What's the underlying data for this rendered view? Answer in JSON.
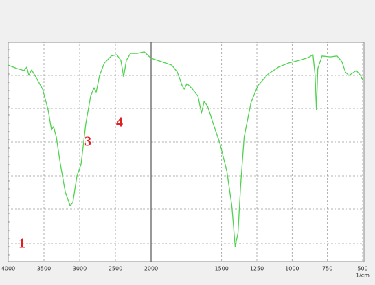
{
  "chart_data": {
    "type": "line",
    "x_label": "1/cm",
    "xlim": [
      4000,
      500
    ],
    "xbreak": 2000,
    "xticks": [
      4000,
      3500,
      3000,
      2500,
      2000,
      1500,
      1250,
      1000,
      750,
      500
    ],
    "ylim": [
      0,
      100
    ],
    "color": "#4fd34f",
    "annotations": [
      "1",
      "3",
      "4"
    ],
    "x": [
      4000,
      3875,
      3779,
      3740,
      3712,
      3673,
      3615,
      3519,
      3442,
      3394,
      3365,
      3327,
      3269,
      3202,
      3135,
      3096,
      3038,
      2981,
      2913,
      2846,
      2798,
      2769,
      2721,
      2654,
      2558,
      2481,
      2423,
      2385,
      2346,
      2288,
      2192,
      2096,
      2000,
      1927,
      1853,
      1814,
      1780,
      1765,
      1746,
      1707,
      1668,
      1643,
      1624,
      1599,
      1560,
      1511,
      1463,
      1428,
      1404,
      1384,
      1365,
      1340,
      1292,
      1243,
      1170,
      1096,
      1023,
      950,
      886,
      852,
      837,
      828,
      818,
      788,
      730,
      681,
      647,
      622,
      598,
      574,
      545,
      515,
      500
    ],
    "values": [
      89.5,
      87.9,
      87,
      88.6,
      84.8,
      87.3,
      84.1,
      78.4,
      68.9,
      59.4,
      61,
      56.2,
      43.5,
      30.8,
      24.4,
      25.7,
      38.1,
      43.5,
      62.5,
      75.2,
      79,
      76.8,
      84.8,
      90.5,
      93.7,
      94.3,
      91.7,
      84.1,
      91.7,
      94.9,
      94.9,
      95.6,
      92.7,
      91.1,
      89.5,
      86.3,
      80,
      78.4,
      81,
      78.4,
      75.2,
      67.3,
      72.7,
      70.5,
      62.5,
      53,
      40.3,
      24.4,
      5.4,
      11.7,
      34,
      56.2,
      72.1,
      80,
      85.4,
      88.6,
      90.5,
      91.7,
      93,
      94.3,
      84.8,
      68.9,
      87.9,
      93.7,
      93.3,
      93.7,
      91.1,
      86.3,
      84.8,
      85.7,
      87,
      84.8,
      82.5
    ]
  }
}
